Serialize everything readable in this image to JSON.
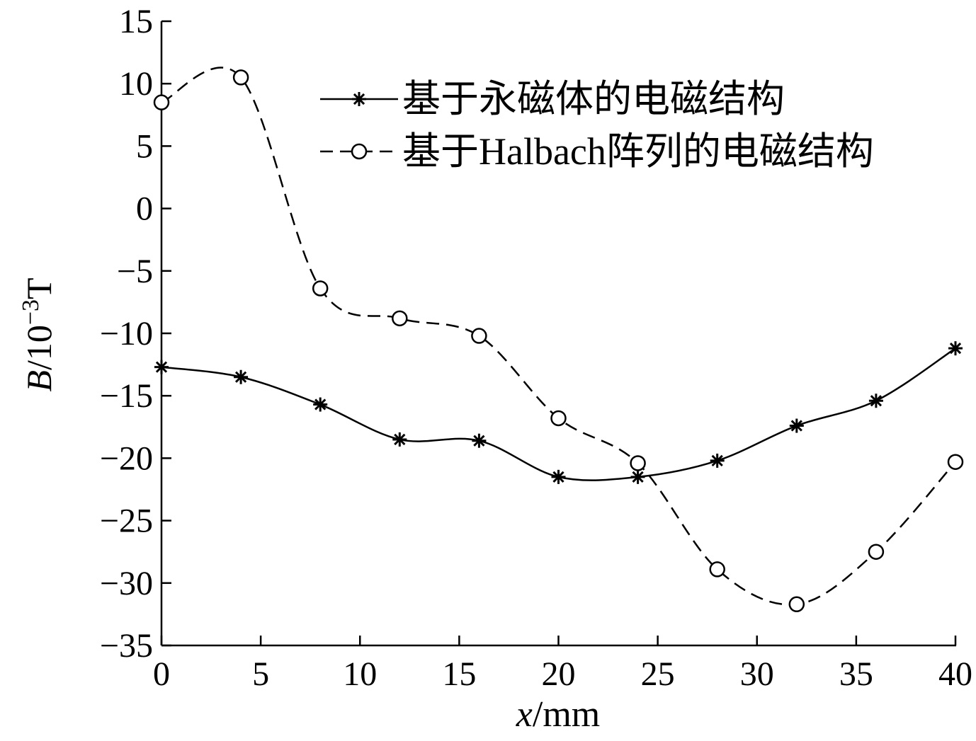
{
  "chart_data": {
    "type": "line",
    "title": "",
    "xlabel": {
      "var": "x",
      "unit": "/mm"
    },
    "ylabel": {
      "var": "B",
      "unit": "/10",
      "exp": "−3",
      "unit2": "T"
    },
    "xlim": [
      0,
      40
    ],
    "ylim": [
      -35,
      15
    ],
    "x_ticks": [
      0,
      5,
      10,
      15,
      20,
      25,
      30,
      35,
      40
    ],
    "y_ticks": [
      15,
      10,
      5,
      0,
      -5,
      -10,
      -15,
      -20,
      -25,
      -30,
      -35
    ],
    "x_tick_labels": [
      "0",
      "5",
      "10",
      "15",
      "20",
      "25",
      "30",
      "35",
      "40"
    ],
    "y_tick_labels": [
      "15",
      "10",
      "5",
      "0",
      "−5",
      "−10",
      "−15",
      "−20",
      "−25",
      "−30",
      "−35"
    ],
    "grid": false,
    "legend_position": "top-right",
    "series": [
      {
        "name": "基于永磁体的电磁结构",
        "marker": "asterisk",
        "line_style": "solid",
        "color": "#000000",
        "x": [
          0,
          4,
          8,
          12,
          16,
          20,
          24,
          28,
          32,
          36,
          40
        ],
        "y": [
          -12.7,
          -13.5,
          -15.7,
          -18.5,
          -18.6,
          -21.5,
          -21.5,
          -20.2,
          -17.4,
          -15.4,
          -11.2
        ]
      },
      {
        "name": "基于Halbach阵列的电磁结构",
        "marker": "circle",
        "line_style": "dashed",
        "color": "#000000",
        "x": [
          0,
          4,
          8,
          12,
          16,
          20,
          24,
          28,
          32,
          36,
          40
        ],
        "y": [
          8.5,
          10.5,
          -6.4,
          -8.8,
          -10.2,
          -16.8,
          -20.4,
          -28.9,
          -31.7,
          -27.5,
          -20.3
        ]
      }
    ]
  }
}
